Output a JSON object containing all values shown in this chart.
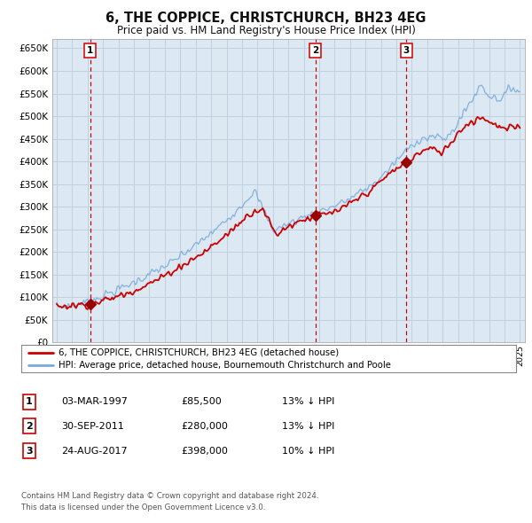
{
  "title": "6, THE COPPICE, CHRISTCHURCH, BH23 4EG",
  "subtitle": "Price paid vs. HM Land Registry's House Price Index (HPI)",
  "background_color": "#ffffff",
  "grid_color": "#c0d0e0",
  "plot_bg_color": "#dce8f2",
  "vline_x": [
    1997.17,
    2011.75,
    2017.65
  ],
  "sale_prices": [
    85500,
    280000,
    398000
  ],
  "sale_labels": [
    "1",
    "2",
    "3"
  ],
  "ylabel_ticks": [
    "£0",
    "£50K",
    "£100K",
    "£150K",
    "£200K",
    "£250K",
    "£300K",
    "£350K",
    "£400K",
    "£450K",
    "£500K",
    "£550K",
    "£600K",
    "£650K"
  ],
  "ytick_values": [
    0,
    50000,
    100000,
    150000,
    200000,
    250000,
    300000,
    350000,
    400000,
    450000,
    500000,
    550000,
    600000,
    650000
  ],
  "xmin": 1994.7,
  "xmax": 2025.3,
  "ymin": 0,
  "ymax": 670000,
  "red_line_color": "#cc0000",
  "blue_line_color": "#7aaadd",
  "marker_color": "#990000",
  "vline_color": "#cc0000",
  "legend_red_label": "6, THE COPPICE, CHRISTCHURCH, BH23 4EG (detached house)",
  "legend_blue_label": "HPI: Average price, detached house, Bournemouth Christchurch and Poole",
  "table_rows": [
    {
      "label": "1",
      "date": "03-MAR-1997",
      "price": "£85,500",
      "note": "13% ↓ HPI"
    },
    {
      "label": "2",
      "date": "30-SEP-2011",
      "price": "£280,000",
      "note": "13% ↓ HPI"
    },
    {
      "label": "3",
      "date": "24-AUG-2017",
      "price": "£398,000",
      "note": "10% ↓ HPI"
    }
  ],
  "footer_line1": "Contains HM Land Registry data © Crown copyright and database right 2024.",
  "footer_line2": "This data is licensed under the Open Government Licence v3.0."
}
